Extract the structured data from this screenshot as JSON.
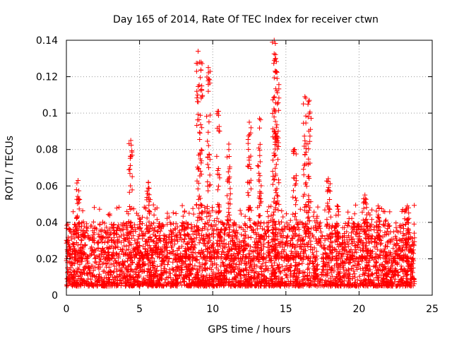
{
  "chart_data": {
    "type": "scatter",
    "title": "Day 165 of 2014, Rate Of TEC Index for receiver ctwn",
    "xlabel": "GPS time / hours",
    "ylabel": "ROTI / TECUs",
    "xlim": [
      0,
      25
    ],
    "ylim": [
      0,
      0.14
    ],
    "x_ticks": [
      0,
      5,
      10,
      15,
      20,
      25
    ],
    "x_tick_labels": [
      "0",
      "5",
      "10",
      "15",
      "20",
      "25"
    ],
    "y_ticks": [
      0,
      0.02,
      0.04,
      0.06,
      0.08,
      0.1,
      0.12,
      0.14
    ],
    "y_tick_labels": [
      "0",
      "0.02",
      "0.04",
      "0.06",
      "0.08",
      "0.1",
      "0.12",
      "0.14"
    ],
    "grid": true,
    "marker": "+",
    "color": "#ff0000",
    "time_range_hours": [
      0,
      23.8
    ],
    "typical_band": [
      0.005,
      0.03
    ],
    "series": [
      {
        "name": "ROTI",
        "points_note": "dense scatter; notable peaks listed",
        "peaks": [
          {
            "x": 0.8,
            "y": 0.063
          },
          {
            "x": 4.4,
            "y": 0.085
          },
          {
            "x": 5.6,
            "y": 0.062
          },
          {
            "x": 9.0,
            "y": 0.134
          },
          {
            "x": 9.2,
            "y": 0.128
          },
          {
            "x": 9.7,
            "y": 0.125
          },
          {
            "x": 10.4,
            "y": 0.101
          },
          {
            "x": 11.1,
            "y": 0.083
          },
          {
            "x": 12.5,
            "y": 0.095
          },
          {
            "x": 13.2,
            "y": 0.097
          },
          {
            "x": 14.2,
            "y": 0.14
          },
          {
            "x": 14.3,
            "y": 0.13
          },
          {
            "x": 14.4,
            "y": 0.119
          },
          {
            "x": 15.6,
            "y": 0.08
          },
          {
            "x": 16.3,
            "y": 0.109
          },
          {
            "x": 16.6,
            "y": 0.107
          },
          {
            "x": 17.9,
            "y": 0.064
          },
          {
            "x": 18.5,
            "y": 0.049
          },
          {
            "x": 20.4,
            "y": 0.055
          },
          {
            "x": 21.3,
            "y": 0.049
          },
          {
            "x": 23.3,
            "y": 0.049
          }
        ]
      }
    ]
  }
}
